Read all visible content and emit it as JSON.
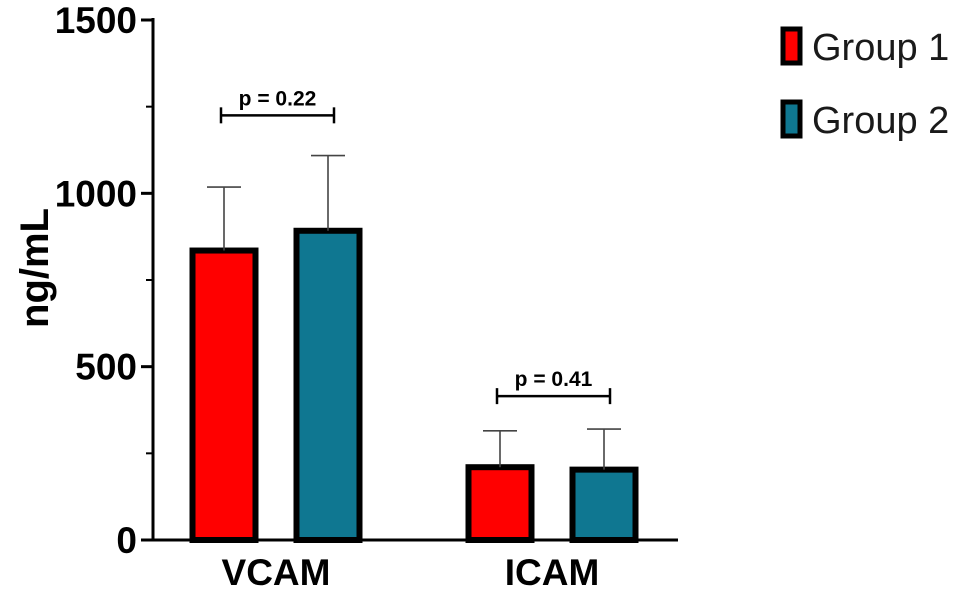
{
  "chart_data": {
    "type": "bar",
    "categories": [
      "VCAM",
      "ICAM"
    ],
    "series": [
      {
        "name": "Group 1",
        "color": "#ff0000",
        "values": [
          835,
          210
        ],
        "error": [
          183,
          105
        ]
      },
      {
        "name": "Group 2",
        "color": "#0f7791",
        "values": [
          892,
          203
        ],
        "error": [
          217,
          117
        ]
      }
    ],
    "ylabel": "ng/mL",
    "ylim": [
      0,
      1500
    ],
    "yticks": [
      0,
      500,
      1000,
      1500
    ],
    "ytick_labels": [
      "0",
      "500",
      "1000",
      "1500"
    ],
    "annotations": [
      {
        "text": "p = 0.22",
        "category": "VCAM",
        "bracket_y": 1225
      },
      {
        "text": "p = 0.41",
        "category": "ICAM",
        "bracket_y": 415
      }
    ],
    "legend": "top-right",
    "grid": false
  }
}
